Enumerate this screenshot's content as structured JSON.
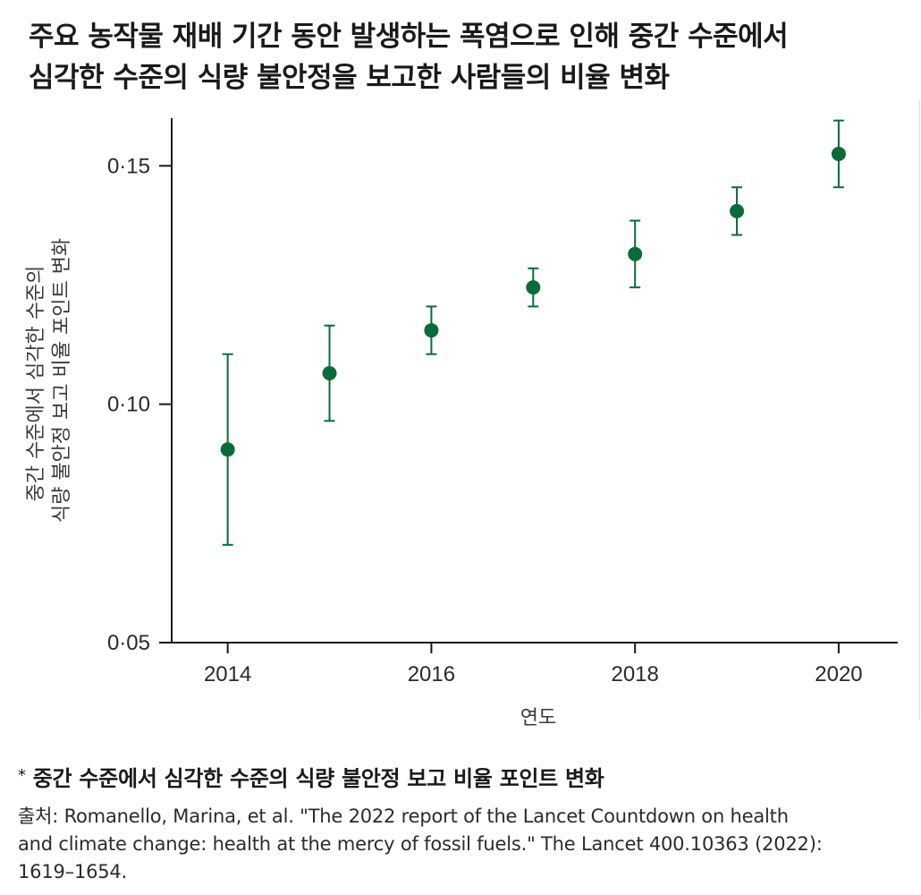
{
  "title": {
    "line1": "주요 농작물 재배 기간 동안 발생하는 폭염으로 인해 중간 수준에서",
    "line2": "심각한 수준의 식량 불안정을 보고한 사람들의 비율 변화"
  },
  "footnote": {
    "marker": "*",
    "text": "중간 수준에서 심각한 수준의 식량 불안정 보고 비율 포인트 변화"
  },
  "source": {
    "line1": "출처: Romanello, Marina, et al. \"The 2022 report of the Lancet Countdown on health",
    "line2": "and climate change: health at the mercy of fossil fuels.\" The Lancet 400.10363 (2022):",
    "line3": "1619–1654."
  },
  "colors": {
    "series": "#0a6b3a",
    "axis": "#1a1a1a"
  },
  "chart_data": {
    "type": "scatter",
    "title": "주요 농작물 재배 기간 동안 발생하는 폭염으로 인해 중간 수준에서 심각한 수준의 식량 불안정을 보고한 사람들의 비율 변화",
    "xlabel": "연도",
    "ylabel_lines": [
      "중간 수준에서 심각한 수준의",
      "식량 불안정 보고 비율 포인트 변화"
    ],
    "x_ticks": [
      2014,
      2016,
      2018,
      2020
    ],
    "x_tick_labels": [
      "2014",
      "2016",
      "2018",
      "2020"
    ],
    "y_ticks": [
      0.05,
      0.1,
      0.15
    ],
    "y_tick_labels": [
      "0·05",
      "0·10",
      "0·15"
    ],
    "xlim": [
      2013.45,
      2020.58
    ],
    "ylim": [
      0.05,
      0.16
    ],
    "grid": false,
    "series": [
      {
        "name": "식량 불안정 보고 비율 포인트 변화",
        "x": [
          2014,
          2015,
          2016,
          2017,
          2018,
          2019,
          2020
        ],
        "y": [
          0.0905,
          0.1065,
          0.1155,
          0.1245,
          0.1315,
          0.1405,
          0.1525
        ],
        "error_low": [
          0.0705,
          0.0965,
          0.1105,
          0.1205,
          0.1245,
          0.1355,
          0.1455
        ],
        "error_high": [
          0.1105,
          0.1165,
          0.1205,
          0.1285,
          0.1385,
          0.1455,
          0.1595
        ]
      }
    ]
  }
}
